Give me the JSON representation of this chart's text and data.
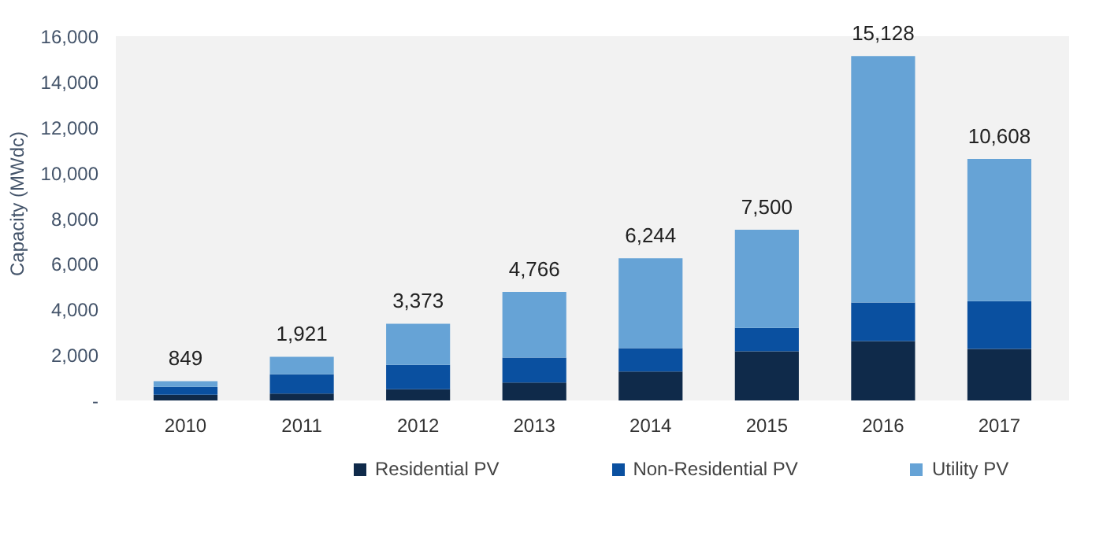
{
  "chart_data": {
    "type": "bar",
    "stacked": true,
    "ylabel": "Capacity (MWdc)",
    "categories": [
      "2010",
      "2011",
      "2012",
      "2013",
      "2014",
      "2015",
      "2016",
      "2017"
    ],
    "series": [
      {
        "name": "Residential PV",
        "color": "#0f2a4a",
        "values": [
          250,
          300,
          490,
          790,
          1270,
          2160,
          2610,
          2260
        ]
      },
      {
        "name": "Non-Residential PV",
        "color": "#0a50a0",
        "values": [
          350,
          850,
          1070,
          1090,
          1030,
          1030,
          1690,
          2100
        ]
      },
      {
        "name": "Utility PV",
        "color": "#66a3d6",
        "values": [
          249,
          771,
          1813,
          2886,
          3944,
          4310,
          10828,
          6248
        ]
      }
    ],
    "totals": [
      "849",
      "1,921",
      "3,373",
      "4,766",
      "6,244",
      "7,500",
      "15,128",
      "10,608"
    ],
    "ylim": [
      0,
      16000
    ],
    "yticks": [
      {
        "value": 0,
        "label": "-"
      },
      {
        "value": 2000,
        "label": "2,000"
      },
      {
        "value": 4000,
        "label": "4,000"
      },
      {
        "value": 6000,
        "label": "6,000"
      },
      {
        "value": 8000,
        "label": "8,000"
      },
      {
        "value": 10000,
        "label": "10,000"
      },
      {
        "value": 12000,
        "label": "12,000"
      },
      {
        "value": 14000,
        "label": "14,000"
      },
      {
        "value": 16000,
        "label": "16,000"
      }
    ],
    "grid": false,
    "legend": "bottom"
  }
}
